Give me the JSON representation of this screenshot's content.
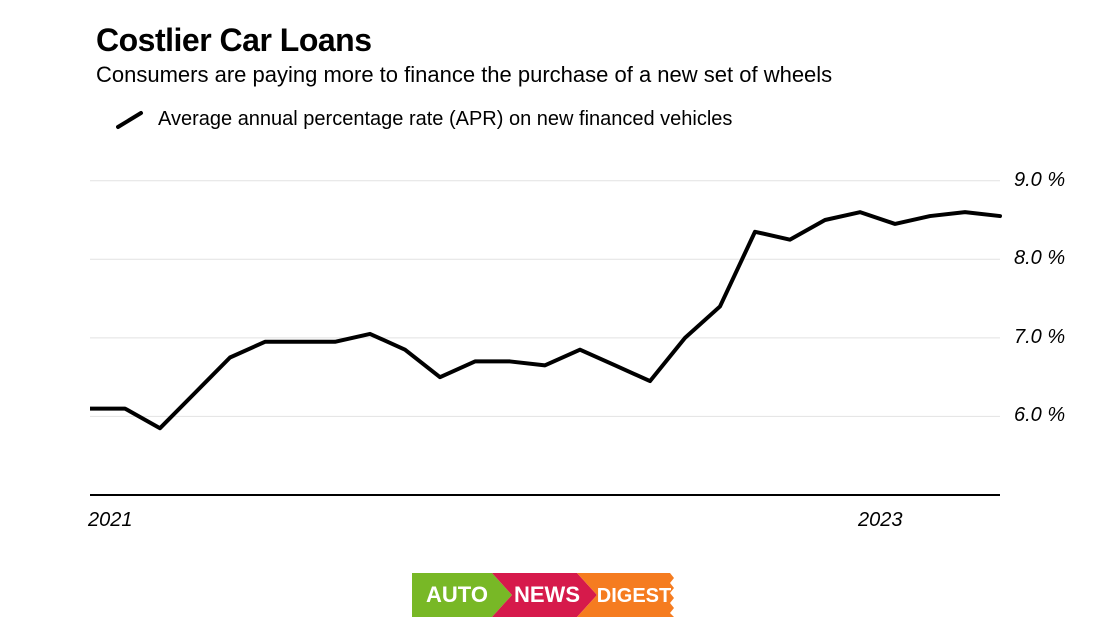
{
  "title": "Costlier Car Loans",
  "subtitle": "Consumers are paying more to finance the purchase of a new set of wheels",
  "legend": {
    "label": "Average annual percentage rate (APR) on new financed vehicles",
    "stroke": "#000000",
    "stroke_width": 4
  },
  "chart": {
    "type": "line",
    "background_color": "#ffffff",
    "grid_color": "#e2e2e2",
    "axis_color": "#000000",
    "line_color": "#000000",
    "line_width": 4,
    "y": {
      "min": 5.0,
      "max": 9.2,
      "gridlines": [
        6.0,
        7.0,
        8.0,
        9.0
      ],
      "ticks": [
        {
          "v": 6.0,
          "label": "6.0 %"
        },
        {
          "v": 7.0,
          "label": "7.0 %"
        },
        {
          "v": 8.0,
          "label": "8.0 %"
        },
        {
          "v": 9.0,
          "label": "9.0 %"
        }
      ],
      "label_fontsize": 20
    },
    "x": {
      "min": 0,
      "max": 26,
      "ticks": [
        {
          "v": 0,
          "label": "2021"
        },
        {
          "v": 22,
          "label": "2023"
        }
      ],
      "label_fontsize": 20
    },
    "series": [
      {
        "name": "apr",
        "points": [
          {
            "x": 0,
            "y": 6.1
          },
          {
            "x": 1,
            "y": 6.1
          },
          {
            "x": 2,
            "y": 5.85
          },
          {
            "x": 3,
            "y": 6.3
          },
          {
            "x": 4,
            "y": 6.75
          },
          {
            "x": 5,
            "y": 6.95
          },
          {
            "x": 6,
            "y": 6.95
          },
          {
            "x": 7,
            "y": 6.95
          },
          {
            "x": 8,
            "y": 7.05
          },
          {
            "x": 9,
            "y": 6.85
          },
          {
            "x": 10,
            "y": 6.5
          },
          {
            "x": 11,
            "y": 6.7
          },
          {
            "x": 12,
            "y": 6.7
          },
          {
            "x": 13,
            "y": 6.65
          },
          {
            "x": 14,
            "y": 6.85
          },
          {
            "x": 15,
            "y": 6.65
          },
          {
            "x": 16,
            "y": 6.45
          },
          {
            "x": 17,
            "y": 7.0
          },
          {
            "x": 18,
            "y": 7.4
          },
          {
            "x": 19,
            "y": 8.35
          },
          {
            "x": 20,
            "y": 8.25
          },
          {
            "x": 21,
            "y": 8.5
          },
          {
            "x": 22,
            "y": 8.6
          },
          {
            "x": 23,
            "y": 8.45
          },
          {
            "x": 24,
            "y": 8.55
          },
          {
            "x": 25,
            "y": 8.6
          },
          {
            "x": 26,
            "y": 8.55
          }
        ]
      }
    ]
  },
  "logo": {
    "auto": {
      "text": "AUTO",
      "bg": "#78b826",
      "fg": "#ffffff"
    },
    "news": {
      "text": "NEWS",
      "bg": "#d61a4b",
      "fg": "#ffffff"
    },
    "digest": {
      "text": "DIGEST",
      "bg": "#f57c20",
      "fg": "#ffffff"
    },
    "font_weight": 800,
    "font_size": 22
  }
}
